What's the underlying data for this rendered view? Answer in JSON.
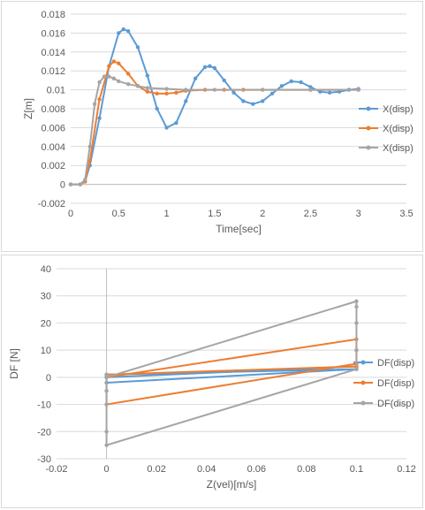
{
  "chart_data": [
    {
      "type": "line",
      "xlabel": "Time[sec]",
      "ylabel": "Z[m]",
      "xlim": [
        0,
        3.5
      ],
      "ylim": [
        -0.002,
        0.018
      ],
      "xticks": [
        "0",
        "0.5",
        "1",
        "1.5",
        "2",
        "2.5",
        "3",
        "3.5"
      ],
      "yticks": [
        "-0.002",
        "0",
        "0.002",
        "0.004",
        "0.006",
        "0.008",
        "0.01",
        "0.012",
        "0.014",
        "0.016",
        "0.018"
      ],
      "grid": true,
      "legend": "right",
      "series": [
        {
          "name": "X(disp)",
          "color": "#5b9bd5",
          "x": [
            0,
            0.1,
            0.15,
            0.2,
            0.3,
            0.4,
            0.5,
            0.55,
            0.6,
            0.7,
            0.8,
            0.9,
            1.0,
            1.1,
            1.2,
            1.3,
            1.4,
            1.45,
            1.5,
            1.6,
            1.7,
            1.8,
            1.9,
            2.0,
            2.1,
            2.2,
            2.3,
            2.4,
            2.5,
            2.6,
            2.7,
            2.8,
            2.9,
            3.0
          ],
          "y": [
            0,
            0,
            0.0003,
            0.002,
            0.007,
            0.0125,
            0.016,
            0.0164,
            0.0162,
            0.0145,
            0.0115,
            0.008,
            0.006,
            0.0065,
            0.0088,
            0.0112,
            0.0124,
            0.0125,
            0.0123,
            0.011,
            0.0097,
            0.0088,
            0.0085,
            0.0088,
            0.0096,
            0.0104,
            0.0109,
            0.0108,
            0.0103,
            0.0098,
            0.0097,
            0.0098,
            0.01,
            0.0101
          ]
        },
        {
          "name": "X(disp)",
          "color": "#ed7d31",
          "x": [
            0,
            0.1,
            0.15,
            0.2,
            0.3,
            0.4,
            0.45,
            0.5,
            0.6,
            0.7,
            0.8,
            0.9,
            1.0,
            1.1,
            1.2,
            1.4,
            1.6,
            1.8,
            2.0,
            2.5,
            3.0
          ],
          "y": [
            0,
            0,
            0.0003,
            0.0025,
            0.009,
            0.0125,
            0.013,
            0.0128,
            0.0117,
            0.0104,
            0.0098,
            0.0096,
            0.0096,
            0.0097,
            0.0099,
            0.01,
            0.01,
            0.01,
            0.01,
            0.01,
            0.01
          ]
        },
        {
          "name": "X(disp)",
          "color": "#a5a5a5",
          "x": [
            0,
            0.1,
            0.15,
            0.2,
            0.25,
            0.3,
            0.35,
            0.4,
            0.45,
            0.5,
            0.6,
            0.7,
            0.8,
            1.0,
            1.2,
            1.5,
            2.0,
            2.5,
            3.0
          ],
          "y": [
            0,
            0,
            0.0005,
            0.004,
            0.0085,
            0.0108,
            0.0114,
            0.0114,
            0.0112,
            0.0109,
            0.0106,
            0.0104,
            0.0102,
            0.0101,
            0.01,
            0.01,
            0.01,
            0.01,
            0.01
          ]
        }
      ]
    },
    {
      "type": "line",
      "xlabel": "Z(vel)[m/s]",
      "ylabel": "DF [N]",
      "xlim": [
        -0.02,
        0.12
      ],
      "ylim": [
        -30,
        40
      ],
      "xticks": [
        "-0.02",
        "0",
        "0.02",
        "0.04",
        "0.06",
        "0.08",
        "0.1",
        "0.12"
      ],
      "yticks": [
        "-30",
        "-20",
        "-10",
        "0",
        "10",
        "20",
        "30",
        "40"
      ],
      "grid": true,
      "legend": "right",
      "series": [
        {
          "name": "DF(disp)",
          "color": "#5b9bd5",
          "x": [
            0,
            0.1,
            0.1,
            0,
            0,
            0.1,
            0.1,
            0
          ],
          "y": [
            0,
            4,
            3,
            -2,
            1,
            3,
            4,
            0
          ]
        },
        {
          "name": "DF(disp)",
          "color": "#ed7d31",
          "x": [
            0,
            0.1,
            0.1,
            0.1,
            0,
            0,
            0.1,
            0.1
          ],
          "y": [
            0,
            14,
            10,
            5,
            -10,
            1,
            4,
            5
          ]
        },
        {
          "name": "DF(disp)",
          "color": "#a5a5a5",
          "x": [
            0,
            0.1,
            0.1,
            0.1,
            0.1,
            0.1,
            0,
            0,
            0,
            0,
            0,
            0
          ],
          "y": [
            0,
            28,
            26,
            20,
            10,
            3,
            -25,
            -20,
            -10,
            -5,
            0,
            1
          ]
        }
      ]
    }
  ]
}
